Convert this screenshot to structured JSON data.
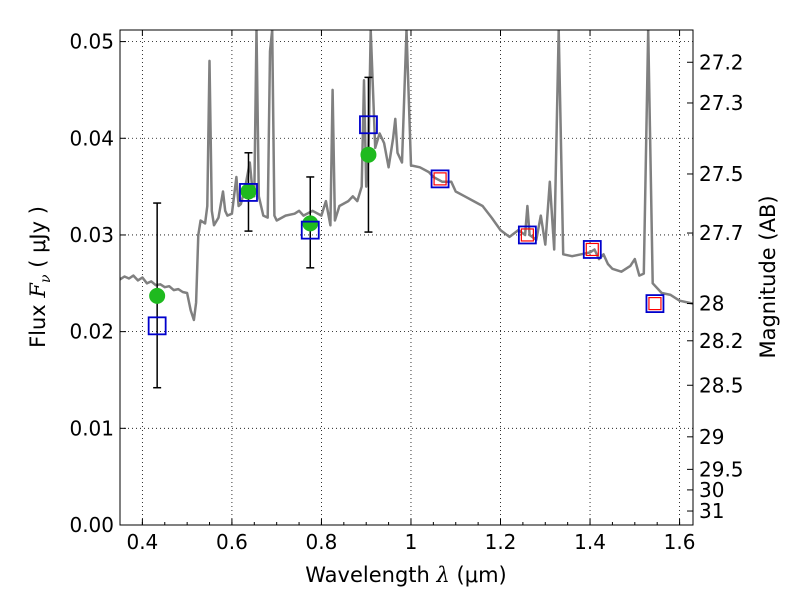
{
  "chart_data": {
    "type": "scatter",
    "title": "",
    "xlabel": "Wavelength",
    "xlabel_symbol": "λ",
    "xlabel_unit": "(μm)",
    "ylabel": "Flux",
    "ylabel_symbol": "F",
    "ylabel_symbol_sub": "ν",
    "ylabel_unit": "( μJy )",
    "y2label": "Magnitude (AB)",
    "xlim": [
      0.35,
      1.63
    ],
    "ylim": [
      0.0,
      0.0512
    ],
    "grid": true,
    "grid_style": "dotted",
    "x_ticks": [
      0.4,
      0.6,
      0.8,
      1.0,
      1.2,
      1.4,
      1.6
    ],
    "x_tick_labels": [
      "0.4",
      "0.6",
      "0.8",
      "1",
      "1.2",
      "1.4",
      "1.6"
    ],
    "y_ticks": [
      0.0,
      0.01,
      0.02,
      0.03,
      0.04,
      0.05
    ],
    "y_tick_labels": [
      "0.00",
      "0.01",
      "0.02",
      "0.03",
      "0.04",
      "0.05"
    ],
    "mag_ticks": [
      "27.2",
      "27.3",
      "27.5",
      "27.7",
      "28",
      "28.2",
      "28.5",
      "29",
      "29.5",
      "30",
      "31"
    ],
    "series": [
      {
        "kind": "line",
        "color": "#808080",
        "points": [
          [
            0.35,
            0.0254
          ],
          [
            0.36,
            0.0257
          ],
          [
            0.37,
            0.0255
          ],
          [
            0.38,
            0.0258
          ],
          [
            0.39,
            0.0253
          ],
          [
            0.4,
            0.0256
          ],
          [
            0.41,
            0.025
          ],
          [
            0.42,
            0.0252
          ],
          [
            0.43,
            0.0248
          ],
          [
            0.44,
            0.0249
          ],
          [
            0.45,
            0.0246
          ],
          [
            0.46,
            0.0247
          ],
          [
            0.47,
            0.0243
          ],
          [
            0.48,
            0.0244
          ],
          [
            0.49,
            0.0241
          ],
          [
            0.5,
            0.024
          ],
          [
            0.508,
            0.0222
          ],
          [
            0.515,
            0.0212
          ],
          [
            0.52,
            0.023
          ],
          [
            0.525,
            0.03
          ],
          [
            0.53,
            0.0315
          ],
          [
            0.54,
            0.0312
          ],
          [
            0.545,
            0.033
          ],
          [
            0.55,
            0.048
          ],
          [
            0.555,
            0.0325
          ],
          [
            0.56,
            0.031
          ],
          [
            0.57,
            0.0318
          ],
          [
            0.58,
            0.0345
          ],
          [
            0.585,
            0.0325
          ],
          [
            0.59,
            0.032
          ],
          [
            0.6,
            0.0322
          ],
          [
            0.61,
            0.036
          ],
          [
            0.615,
            0.033
          ],
          [
            0.62,
            0.0332
          ],
          [
            0.63,
            0.035
          ],
          [
            0.64,
            0.0375
          ],
          [
            0.645,
            0.035
          ],
          [
            0.65,
            0.034
          ],
          [
            0.655,
            0.0512
          ],
          [
            0.66,
            0.034
          ],
          [
            0.67,
            0.032
          ],
          [
            0.68,
            0.0318
          ],
          [
            0.685,
            0.049
          ],
          [
            0.69,
            0.0512
          ],
          [
            0.695,
            0.032
          ],
          [
            0.7,
            0.0315
          ],
          [
            0.72,
            0.032
          ],
          [
            0.74,
            0.0322
          ],
          [
            0.75,
            0.0325
          ],
          [
            0.76,
            0.032
          ],
          [
            0.78,
            0.0325
          ],
          [
            0.8,
            0.032
          ],
          [
            0.81,
            0.0335
          ],
          [
            0.82,
            0.031
          ],
          [
            0.825,
            0.045
          ],
          [
            0.83,
            0.0315
          ],
          [
            0.84,
            0.033
          ],
          [
            0.86,
            0.0335
          ],
          [
            0.87,
            0.034
          ],
          [
            0.88,
            0.0335
          ],
          [
            0.89,
            0.035
          ],
          [
            0.895,
            0.046
          ],
          [
            0.9,
            0.035
          ],
          [
            0.905,
            0.038
          ],
          [
            0.91,
            0.0512
          ],
          [
            0.92,
            0.039
          ],
          [
            0.93,
            0.0405
          ],
          [
            0.94,
            0.0395
          ],
          [
            0.95,
            0.037
          ],
          [
            0.96,
            0.04
          ],
          [
            0.965,
            0.042
          ],
          [
            0.97,
            0.0385
          ],
          [
            0.98,
            0.0375
          ],
          [
            0.99,
            0.0512
          ],
          [
            1.0,
            0.0372
          ],
          [
            1.02,
            0.037
          ],
          [
            1.04,
            0.0365
          ],
          [
            1.05,
            0.036
          ],
          [
            1.07,
            0.0355
          ],
          [
            1.09,
            0.0355
          ],
          [
            1.1,
            0.0345
          ],
          [
            1.12,
            0.034
          ],
          [
            1.14,
            0.0335
          ],
          [
            1.16,
            0.033
          ],
          [
            1.18,
            0.0318
          ],
          [
            1.2,
            0.0305
          ],
          [
            1.22,
            0.0298
          ],
          [
            1.24,
            0.0305
          ],
          [
            1.255,
            0.03
          ],
          [
            1.26,
            0.033
          ],
          [
            1.265,
            0.03
          ],
          [
            1.28,
            0.0295
          ],
          [
            1.29,
            0.032
          ],
          [
            1.3,
            0.029
          ],
          [
            1.31,
            0.0355
          ],
          [
            1.32,
            0.0285
          ],
          [
            1.33,
            0.0512
          ],
          [
            1.34,
            0.028
          ],
          [
            1.36,
            0.0278
          ],
          [
            1.38,
            0.028
          ],
          [
            1.4,
            0.0282
          ],
          [
            1.41,
            0.0285
          ],
          [
            1.42,
            0.0275
          ],
          [
            1.43,
            0.028
          ],
          [
            1.44,
            0.027
          ],
          [
            1.45,
            0.0265
          ],
          [
            1.47,
            0.0262
          ],
          [
            1.49,
            0.0268
          ],
          [
            1.5,
            0.0275
          ],
          [
            1.51,
            0.0258
          ],
          [
            1.52,
            0.026
          ],
          [
            1.53,
            0.0512
          ],
          [
            1.54,
            0.025
          ],
          [
            1.56,
            0.024
          ],
          [
            1.58,
            0.0238
          ],
          [
            1.6,
            0.0232
          ],
          [
            1.62,
            0.023
          ],
          [
            1.63,
            0.0229
          ]
        ]
      },
      {
        "kind": "points_with_errorbars",
        "marker": "circle",
        "color": "#1fba1f",
        "points": [
          {
            "x": 0.433,
            "y": 0.0237,
            "ylow": 0.0142,
            "yhigh": 0.0333
          },
          {
            "x": 0.637,
            "y": 0.0345,
            "ylow": 0.0304,
            "yhigh": 0.0385
          },
          {
            "x": 0.775,
            "y": 0.0312,
            "ylow": 0.0266,
            "yhigh": 0.036
          },
          {
            "x": 0.905,
            "y": 0.0383,
            "ylow": 0.0303,
            "yhigh": 0.0463
          }
        ]
      },
      {
        "kind": "points",
        "marker": "square-open",
        "color": "#0000cc",
        "points": [
          {
            "x": 0.433,
            "y": 0.0206
          },
          {
            "x": 0.637,
            "y": 0.0344
          },
          {
            "x": 0.775,
            "y": 0.0305
          },
          {
            "x": 0.905,
            "y": 0.0414
          },
          {
            "x": 1.065,
            "y": 0.0358
          },
          {
            "x": 1.26,
            "y": 0.03
          },
          {
            "x": 1.405,
            "y": 0.0285
          },
          {
            "x": 1.545,
            "y": 0.0229
          }
        ]
      },
      {
        "kind": "points",
        "marker": "square-open-small",
        "color": "#ff0000",
        "points": [
          {
            "x": 1.065,
            "y": 0.0358
          },
          {
            "x": 1.26,
            "y": 0.03
          },
          {
            "x": 1.405,
            "y": 0.0285
          },
          {
            "x": 1.545,
            "y": 0.0229
          }
        ]
      }
    ]
  }
}
